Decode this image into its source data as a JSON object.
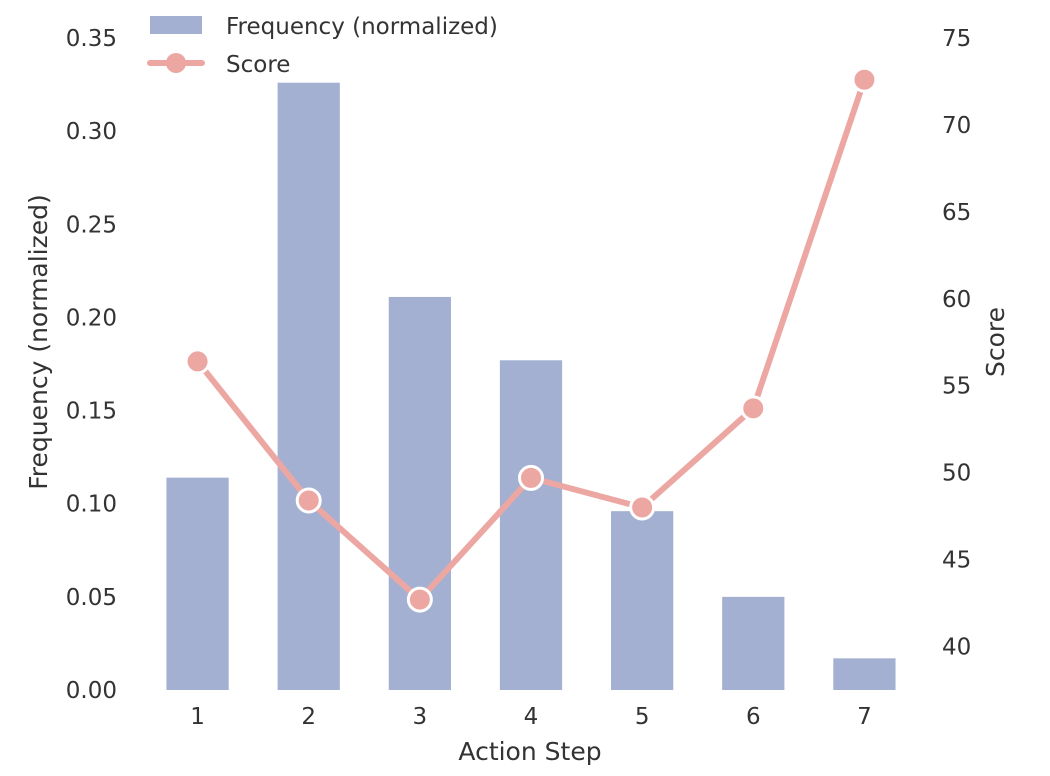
{
  "chart_data": {
    "type": "bar",
    "categories": [
      "1",
      "2",
      "3",
      "4",
      "5",
      "6",
      "7"
    ],
    "xlabel": "Action Step",
    "ylabel": "Frequency (normalized)",
    "y2label": "Score",
    "ylim": [
      0,
      0.35
    ],
    "y2lim": [
      37.5,
      75
    ],
    "yticks": [
      "0.00",
      "0.05",
      "0.10",
      "0.15",
      "0.20",
      "0.25",
      "0.30",
      "0.35"
    ],
    "y2ticks": [
      "40",
      "45",
      "50",
      "55",
      "60",
      "65",
      "70",
      "75"
    ],
    "grid": false,
    "legend": "top-left",
    "series": [
      {
        "name": "Frequency (normalized)",
        "type": "bar",
        "axis": "left",
        "color": "#a3b0d2",
        "values": [
          0.114,
          0.326,
          0.211,
          0.177,
          0.096,
          0.05,
          0.017
        ]
      },
      {
        "name": "Score",
        "type": "line",
        "axis": "right",
        "color": "#eca7a3",
        "values": [
          56.4,
          48.4,
          42.7,
          49.7,
          48.0,
          53.7,
          72.6
        ]
      }
    ]
  }
}
